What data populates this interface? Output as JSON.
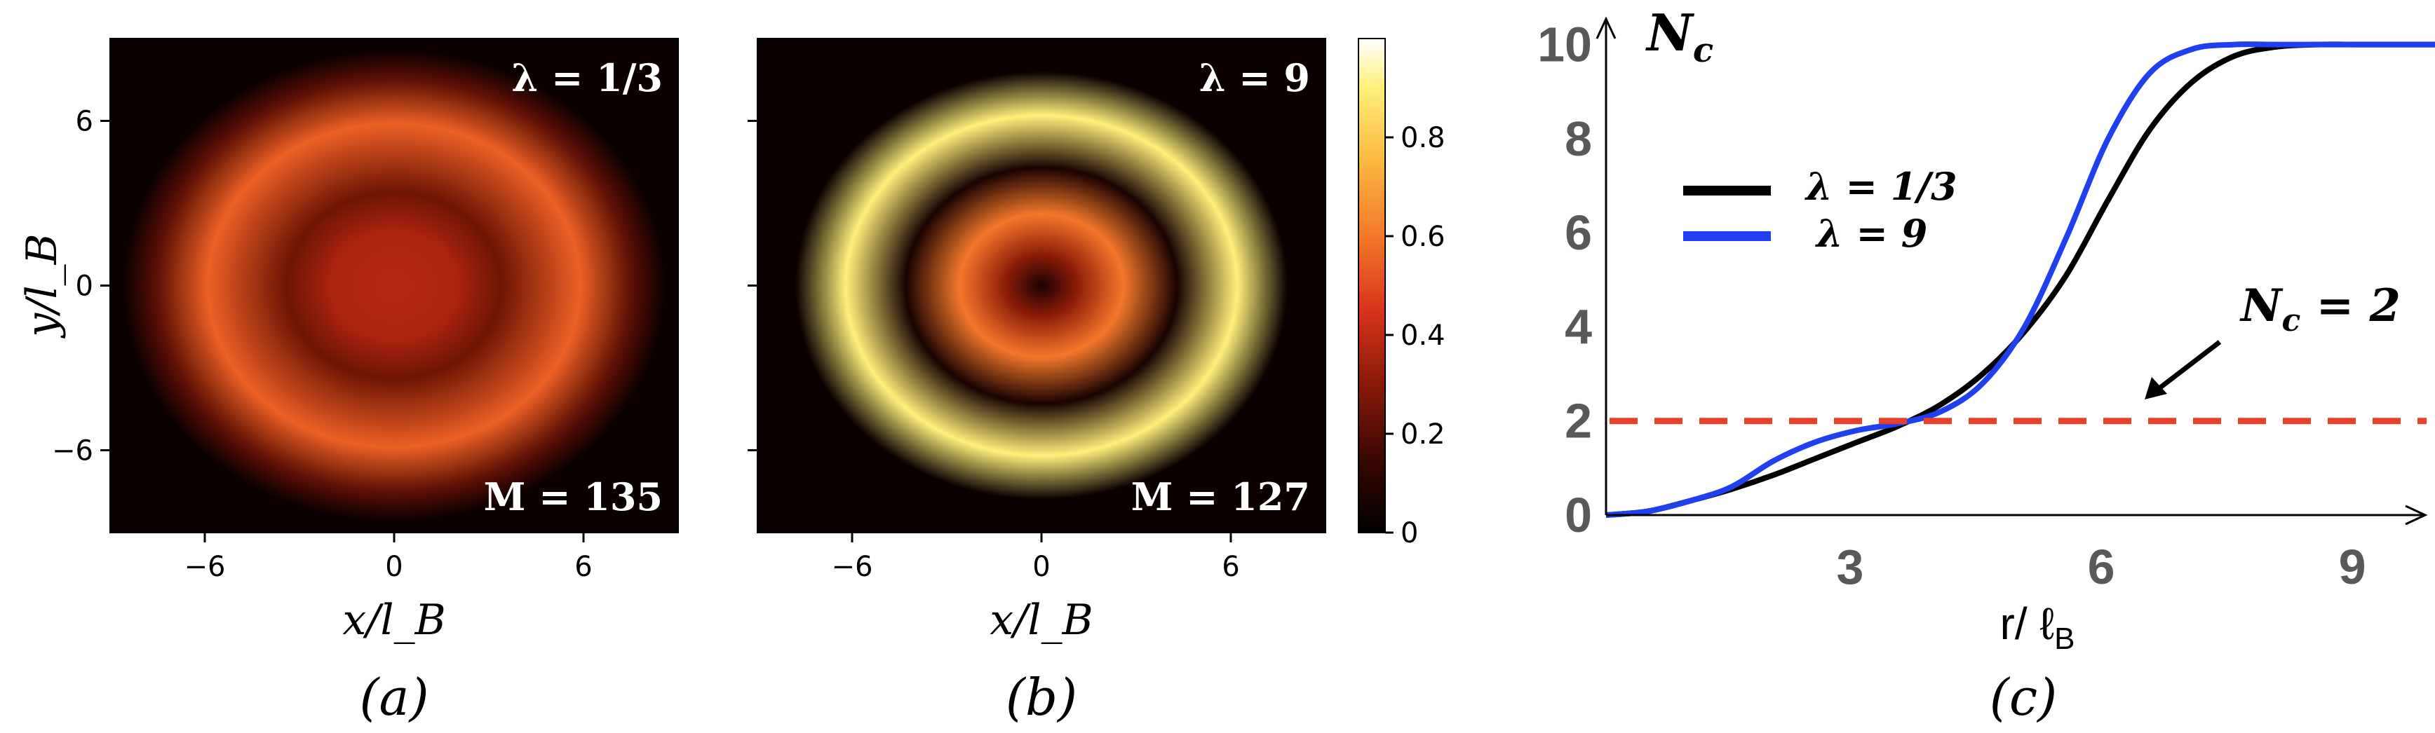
{
  "chart_data": [
    {
      "type": "heatmap",
      "panel_label": "(a)",
      "xlabel": "x/l_B",
      "ylabel": "y/l_B",
      "x_ticks": [
        "−6",
        "0",
        "6"
      ],
      "y_ticks": [
        "6",
        "0",
        "−6"
      ],
      "xlim": [
        -9,
        9
      ],
      "ylim": [
        -9,
        9
      ],
      "annotations": [
        "λ = 1/3",
        "M = 135"
      ],
      "lambda": "1/3",
      "M": 135,
      "density_profile": [
        {
          "r": 0,
          "value": 0.38
        },
        {
          "r": 2,
          "value": 0.36
        },
        {
          "r": 3.4,
          "value": 0.25
        },
        {
          "r": 5.9,
          "value": 0.55
        },
        {
          "r": 7.5,
          "value": 0.22
        },
        {
          "r": 8.6,
          "value": 0.0
        }
      ]
    },
    {
      "type": "heatmap",
      "panel_label": "(b)",
      "xlabel": "x/l_B",
      "x_ticks": [
        "−6",
        "0",
        "6"
      ],
      "xlim": [
        -9,
        9
      ],
      "ylim": [
        -9,
        9
      ],
      "annotations": [
        "λ = 9",
        "M = 127"
      ],
      "lambda": "9",
      "M": 127,
      "colorbar": {
        "ticks": [
          "0",
          "0.2",
          "0.4",
          "0.6",
          "0.8"
        ],
        "range": [
          0,
          1
        ]
      },
      "density_profile": [
        {
          "r": 0,
          "value": 0.05
        },
        {
          "r": 1.1,
          "value": 0.3
        },
        {
          "r": 2.6,
          "value": 0.6
        },
        {
          "r": 4.3,
          "value": 0.05
        },
        {
          "r": 6.2,
          "value": 0.9
        },
        {
          "r": 7.8,
          "value": 0.0
        }
      ]
    },
    {
      "type": "line",
      "panel_label": "(c)",
      "ylabel_main": "N",
      "ylabel_sub": "c",
      "xlabel_main": "r/ ℓ",
      "xlabel_sub": "B",
      "x_ticks": [
        "3",
        "6",
        "9"
      ],
      "y_ticks": [
        "0",
        "2",
        "4",
        "6",
        "8",
        "10"
      ],
      "xlim": [
        0,
        10
      ],
      "ylim": [
        0,
        10.5
      ],
      "series": [
        {
          "name": "λ = 1/3",
          "color": "#000000",
          "x": [
            0,
            0.5,
            1,
            1.5,
            2,
            2.5,
            3,
            3.5,
            4,
            4.5,
            5,
            5.5,
            6,
            6.5,
            7,
            7.5,
            8,
            8.5,
            9,
            10
          ],
          "y": [
            0,
            0.08,
            0.3,
            0.55,
            0.85,
            1.2,
            1.55,
            1.9,
            2.35,
            3.0,
            3.9,
            5.1,
            6.7,
            8.2,
            9.2,
            9.75,
            9.95,
            10,
            10,
            10
          ]
        },
        {
          "name": "λ = 9",
          "color": "#1f3ff0",
          "x": [
            0,
            0.5,
            1,
            1.5,
            2,
            2.5,
            3,
            3.5,
            4,
            4.5,
            5,
            5.5,
            6,
            6.5,
            7,
            7.5,
            8,
            9,
            10
          ],
          "y": [
            0,
            0.08,
            0.3,
            0.6,
            1.15,
            1.55,
            1.8,
            1.95,
            2.2,
            2.8,
            4.0,
            5.9,
            8.0,
            9.4,
            9.9,
            10,
            10,
            10,
            10
          ]
        }
      ],
      "reference_line": {
        "y": 2,
        "label_main": "N",
        "label_sub": "c",
        "label_rest": " = 2",
        "color": "#e8402a"
      }
    }
  ]
}
